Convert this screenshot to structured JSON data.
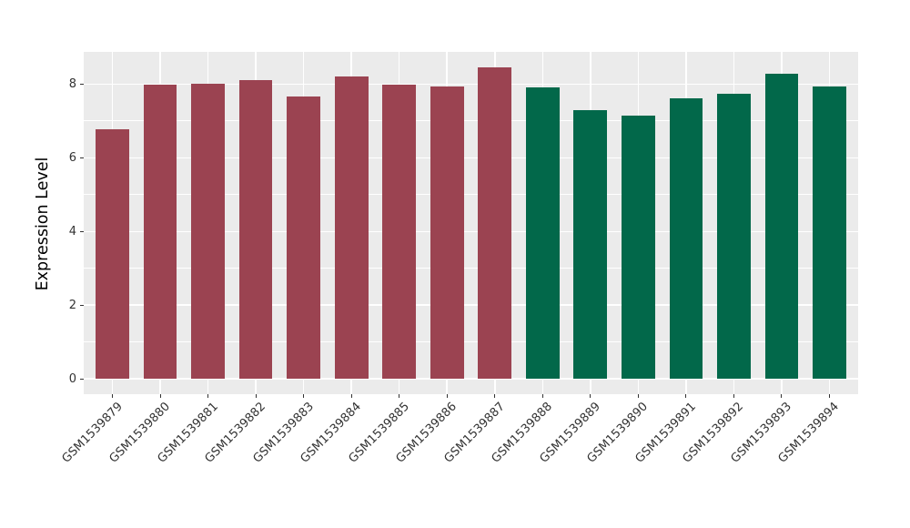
{
  "chart_data": {
    "type": "bar",
    "title": "",
    "xlabel": "",
    "ylabel": "Expression Level",
    "categories": [
      "GSM1539879",
      "GSM1539880",
      "GSM1539881",
      "GSM1539882",
      "GSM1539883",
      "GSM1539884",
      "GSM1539885",
      "GSM1539886",
      "GSM1539887",
      "GSM1539888",
      "GSM1539889",
      "GSM1539890",
      "GSM1539891",
      "GSM1539892",
      "GSM1539893",
      "GSM1539894"
    ],
    "values": [
      6.78,
      7.99,
      8.01,
      8.1,
      7.66,
      8.2,
      7.98,
      7.95,
      8.45,
      7.91,
      7.29,
      7.15,
      7.62,
      7.74,
      8.29,
      7.95
    ],
    "bar_colors": [
      "#9B4351",
      "#9B4351",
      "#9B4351",
      "#9B4351",
      "#9B4351",
      "#9B4351",
      "#9B4351",
      "#9B4351",
      "#9B4351",
      "#02684A",
      "#02684A",
      "#02684A",
      "#02684A",
      "#02684A",
      "#02684A",
      "#02684A"
    ],
    "group_colors": {
      "group1": "#9B4351",
      "group2": "#02684A"
    },
    "ylim": [
      0,
      8.87
    ],
    "y_major_ticks": [
      0,
      2,
      4,
      6,
      8
    ],
    "y_minor_gridlines": [
      1,
      3,
      5,
      7
    ],
    "grid": true,
    "legend": "none",
    "panel_background": "#EBEBEB",
    "gridline_color": "#FFFFFF",
    "axis_text_color": "#333333"
  }
}
